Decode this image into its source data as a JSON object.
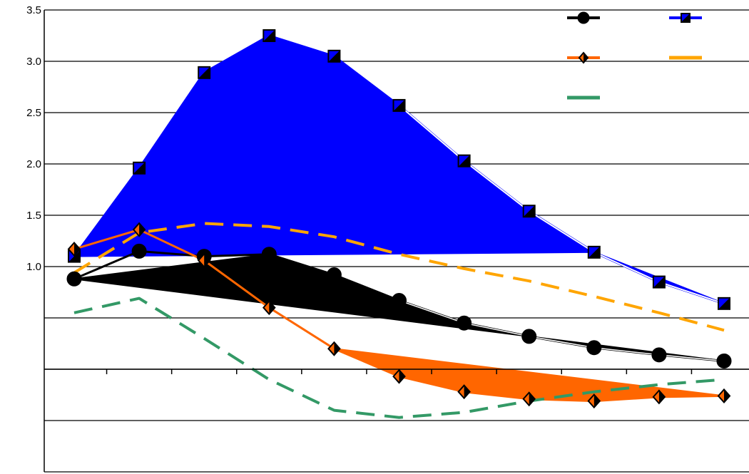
{
  "chart_data": {
    "type": "line",
    "title": "",
    "xlabel": "",
    "ylabel": "",
    "ylim": [
      -1.0,
      3.5
    ],
    "y_ticks": [
      {
        "value": 3.5,
        "label": "3.5"
      },
      {
        "value": 3.0,
        "label": "3.0"
      },
      {
        "value": 2.5,
        "label": "2.5"
      },
      {
        "value": 2.0,
        "label": "2.0"
      },
      {
        "value": 1.5,
        "label": "1.5"
      },
      {
        "value": 1.0,
        "label": "1.0"
      }
    ],
    "x": [
      1,
      2,
      3,
      4,
      5,
      6,
      7,
      8,
      9,
      10,
      11
    ],
    "grid": true,
    "legend": {
      "placement": "top-right",
      "entries_labelled": false
    },
    "series": [
      {
        "key": "black",
        "color": "#000000",
        "style": "solid",
        "marker": "circle",
        "values": [
          0.88,
          1.15,
          1.1,
          1.12,
          0.92,
          0.67,
          0.45,
          0.32,
          0.21,
          0.14,
          0.08
        ]
      },
      {
        "key": "blue",
        "color": "#0000ff",
        "style": "solid",
        "marker": "square",
        "values": [
          1.1,
          1.96,
          2.89,
          3.25,
          3.05,
          2.57,
          2.03,
          1.54,
          1.14,
          0.85,
          0.64
        ]
      },
      {
        "key": "orange",
        "color": "#ff6600",
        "style": "solid",
        "marker": "diamond",
        "values": [
          1.17,
          1.36,
          1.06,
          0.6,
          0.2,
          -0.07,
          -0.22,
          -0.29,
          -0.31,
          -0.27,
          -0.26
        ]
      },
      {
        "key": "gold-dash",
        "color": "#ffa500",
        "style": "dashed",
        "marker": "none",
        "values": [
          0.94,
          1.33,
          1.42,
          1.39,
          1.29,
          1.12,
          0.98,
          0.86,
          0.71,
          0.55,
          0.38
        ]
      },
      {
        "key": "green-dash",
        "color": "#339966",
        "style": "dashed",
        "marker": "none",
        "values": [
          0.55,
          0.69,
          0.3,
          -0.1,
          -0.4,
          -0.47,
          -0.42,
          -0.31,
          -0.22,
          -0.15,
          -0.1
        ]
      }
    ]
  }
}
